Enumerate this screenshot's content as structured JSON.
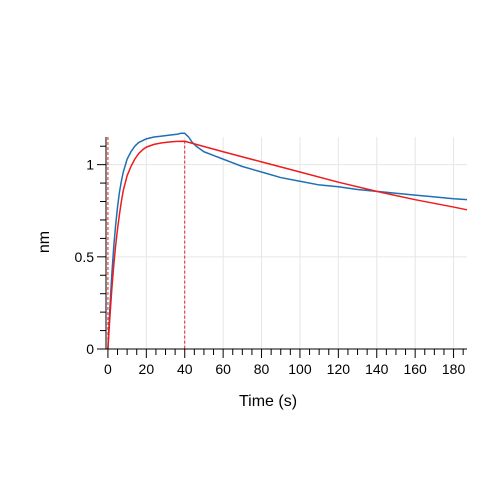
{
  "chart_data": {
    "type": "line",
    "title": "",
    "xlabel": "Time (s)",
    "ylabel": "nm",
    "xlim": [
      -1,
      187
    ],
    "ylim": [
      0,
      1.15
    ],
    "x_ticks": [
      0,
      20,
      40,
      60,
      80,
      100,
      120,
      140,
      160,
      180
    ],
    "x_tick_labels": [
      "0",
      "20",
      "40",
      "60",
      "80",
      "100",
      "120",
      "140",
      "160",
      "180"
    ],
    "y_ticks": [
      0,
      0.5,
      1
    ],
    "y_tick_labels": [
      "0",
      "0.5",
      "1"
    ],
    "grid": true,
    "legend": "none",
    "vertical_markers": [
      0,
      40
    ],
    "series": [
      {
        "color": "#1f6fb4",
        "x": [
          0,
          1,
          2,
          3,
          4,
          5,
          6,
          7,
          8,
          10,
          12,
          14,
          16,
          18,
          20,
          24,
          28,
          32,
          36,
          38,
          40,
          41,
          42,
          44,
          46,
          50,
          55,
          60,
          65,
          70,
          80,
          90,
          100,
          110,
          120,
          130,
          140,
          150,
          160,
          170,
          180,
          187
        ],
        "y": [
          0.0,
          0.22,
          0.4,
          0.55,
          0.67,
          0.77,
          0.85,
          0.91,
          0.96,
          1.03,
          1.07,
          1.1,
          1.12,
          1.13,
          1.14,
          1.15,
          1.155,
          1.16,
          1.165,
          1.17,
          1.17,
          1.16,
          1.15,
          1.12,
          1.1,
          1.07,
          1.05,
          1.03,
          1.01,
          0.99,
          0.96,
          0.93,
          0.91,
          0.89,
          0.88,
          0.865,
          0.855,
          0.845,
          0.835,
          0.825,
          0.815,
          0.81
        ]
      },
      {
        "color": "#ee1c1c",
        "x": [
          0,
          1,
          2,
          3,
          4,
          5,
          6,
          7,
          8,
          10,
          12,
          14,
          16,
          18,
          20,
          24,
          28,
          32,
          36,
          40,
          60,
          80,
          100,
          120,
          140,
          160,
          180,
          187
        ],
        "y": [
          0.0,
          0.17,
          0.32,
          0.45,
          0.56,
          0.65,
          0.73,
          0.8,
          0.86,
          0.94,
          0.99,
          1.03,
          1.06,
          1.08,
          1.095,
          1.11,
          1.118,
          1.123,
          1.126,
          1.127,
          1.07,
          1.015,
          0.96,
          0.905,
          0.855,
          0.81,
          0.77,
          0.755
        ]
      }
    ]
  }
}
